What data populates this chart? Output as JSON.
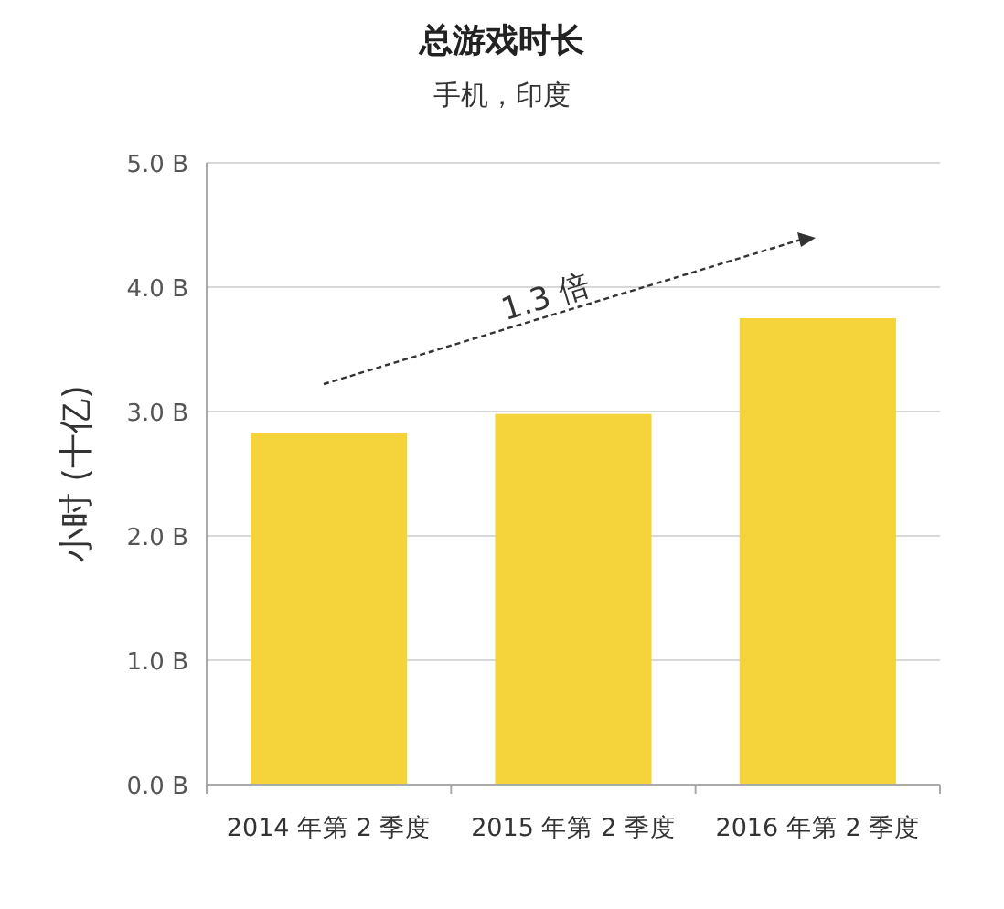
{
  "chart_data": {
    "type": "bar",
    "title": "总游戏时长",
    "subtitle": "手机，印度",
    "ylabel": "小时 (十亿)",
    "categories": [
      "2014 年第 2 季度",
      "2015 年第 2 季度",
      "2016 年第 2 季度"
    ],
    "values": [
      2.83,
      2.98,
      3.75
    ],
    "color": "#f5d33a",
    "ylim": [
      0,
      5
    ],
    "yticks": [
      {
        "value": 0,
        "label": "0.0 B"
      },
      {
        "value": 1,
        "label": "1.0 B"
      },
      {
        "value": 2,
        "label": "2.0 B"
      },
      {
        "value": 3,
        "label": "3.0 B"
      },
      {
        "value": 4,
        "label": "4.0 B"
      },
      {
        "value": 5,
        "label": "5.0 B"
      }
    ],
    "grid": "y",
    "annotations": [
      "1.3 倍"
    ]
  }
}
